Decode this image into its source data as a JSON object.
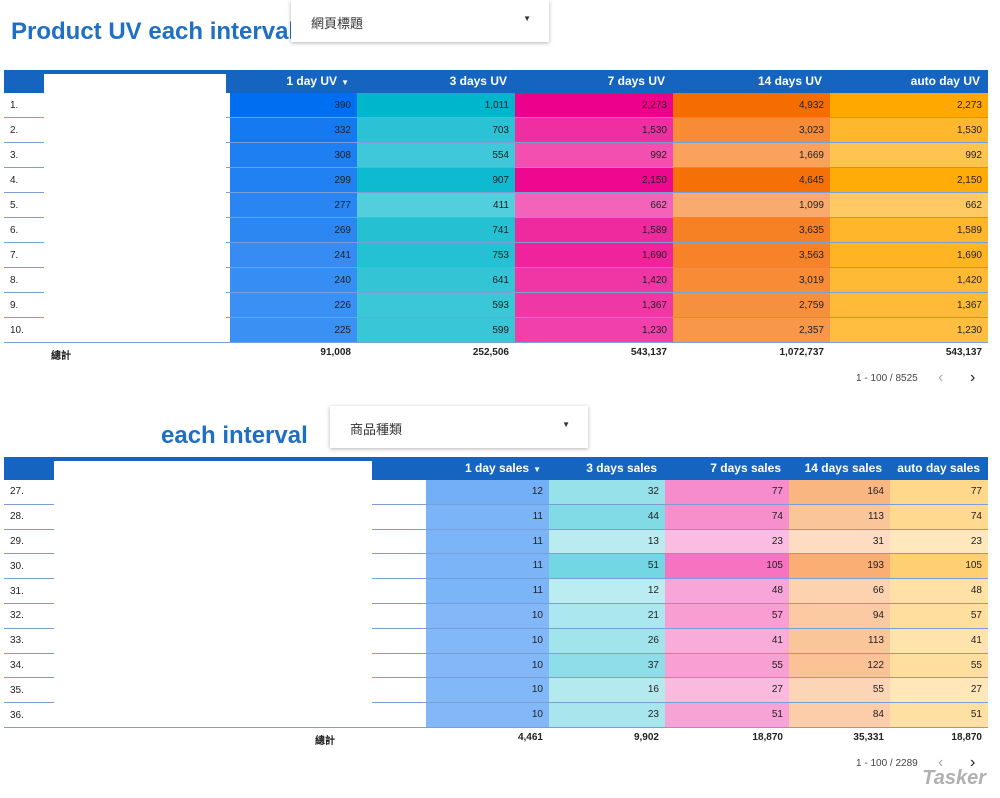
{
  "section1": {
    "title": "Product UV each interval",
    "dropdown_label": "網頁標題",
    "headers": [
      "1 day UV",
      "3 days UV",
      "7 days UV",
      "14 days UV",
      "auto day UV"
    ],
    "rows": [
      {
        "idx": "1.",
        "values": [
          "390",
          "1,011",
          "2,273",
          "4,932",
          "2,273"
        ]
      },
      {
        "idx": "2.",
        "values": [
          "332",
          "703",
          "1,530",
          "3,023",
          "1,530"
        ]
      },
      {
        "idx": "3.",
        "values": [
          "308",
          "554",
          "992",
          "1,669",
          "992"
        ]
      },
      {
        "idx": "4.",
        "values": [
          "299",
          "907",
          "2,150",
          "4,645",
          "2,150"
        ]
      },
      {
        "idx": "5.",
        "values": [
          "277",
          "411",
          "662",
          "1,099",
          "662"
        ]
      },
      {
        "idx": "6.",
        "values": [
          "269",
          "741",
          "1,589",
          "3,635",
          "1,589"
        ]
      },
      {
        "idx": "7.",
        "values": [
          "241",
          "753",
          "1,690",
          "3,563",
          "1,690"
        ]
      },
      {
        "idx": "8.",
        "values": [
          "240",
          "641",
          "1,420",
          "3,019",
          "1,420"
        ]
      },
      {
        "idx": "9.",
        "values": [
          "226",
          "593",
          "1,367",
          "2,759",
          "1,367"
        ]
      },
      {
        "idx": "10.",
        "values": [
          "225",
          "599",
          "1,230",
          "2,357",
          "1,230"
        ]
      }
    ],
    "total_label": "總計",
    "totals": [
      "91,008",
      "252,506",
      "543,137",
      "1,072,737",
      "543,137"
    ],
    "pager": "1 - 100 / 8525"
  },
  "section2": {
    "title": "each interval",
    "dropdown_label": "商品種類",
    "headers": [
      "1 day sales",
      "3 days sales",
      "7 days sales",
      "14 days sales",
      "auto day sales"
    ],
    "rows": [
      {
        "idx": "27.",
        "values": [
          "12",
          "32",
          "77",
          "164",
          "77"
        ]
      },
      {
        "idx": "28.",
        "values": [
          "11",
          "44",
          "74",
          "113",
          "74"
        ]
      },
      {
        "idx": "29.",
        "values": [
          "11",
          "13",
          "23",
          "31",
          "23"
        ]
      },
      {
        "idx": "30.",
        "values": [
          "11",
          "51",
          "105",
          "193",
          "105"
        ]
      },
      {
        "idx": "31.",
        "values": [
          "11",
          "12",
          "48",
          "66",
          "48"
        ]
      },
      {
        "idx": "32.",
        "values": [
          "10",
          "21",
          "57",
          "94",
          "57"
        ]
      },
      {
        "idx": "33.",
        "values": [
          "10",
          "26",
          "41",
          "113",
          "41"
        ]
      },
      {
        "idx": "34.",
        "values": [
          "10",
          "37",
          "55",
          "122",
          "55"
        ]
      },
      {
        "idx": "35.",
        "values": [
          "10",
          "16",
          "27",
          "55",
          "27"
        ]
      },
      {
        "idx": "36.",
        "values": [
          "10",
          "23",
          "51",
          "84",
          "51"
        ]
      }
    ],
    "total_label": "總計",
    "totals": [
      "4,461",
      "9,902",
      "18,870",
      "35,331",
      "18,870"
    ],
    "pager": "1 - 100 / 2289"
  },
  "icons": {
    "sort": "sort-desc-icon",
    "caret": "caret-down-icon",
    "prev": "chevron-left-icon",
    "next": "chevron-right-icon"
  },
  "glyphs": {
    "sort": "▼",
    "caret": "▼",
    "prev": "‹",
    "next": "›"
  },
  "colors": {
    "header_bg": "#1565c0",
    "title": "#1f6fc5",
    "col1_rgb": [
      0,
      110,
      240
    ],
    "col2_rgb": [
      0,
      182,
      204
    ],
    "col3_rgb": [
      236,
      0,
      140
    ],
    "col4_rgb": [
      245,
      108,
      0
    ],
    "col5_rgb": [
      255,
      168,
      0
    ]
  },
  "watermark": "Tasker"
}
